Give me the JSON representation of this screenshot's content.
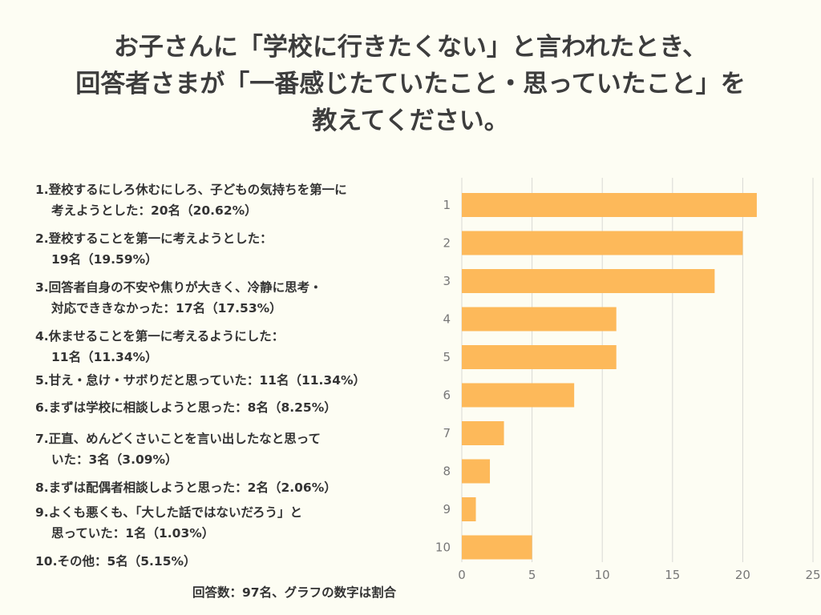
{
  "title": {
    "line1": "お子さんに「学校に行きたくない」と言われたとき、",
    "line2": "回答者さまが「一番感じたていたこと・思っていたこと」を",
    "line3": "教えてください。"
  },
  "legend": [
    {
      "line1": "1.登校するにしろ休むにしろ、子どもの気持ちを第一に",
      "line2": "考えようとした：20名（20.62%）"
    },
    {
      "line1": "2.登校することを第一に考えようとした：",
      "line2": " 19名（19.59%）"
    },
    {
      "line1": "3.回答者自身の不安や焦りが大きく、冷静に思考・",
      "line2": "対応でききなかった：17名（17.53%）"
    },
    {
      "line1": "4.休ませることを第一に考えるようにした：",
      "line2": " 11名（11.34%）"
    },
    {
      "line1": "5.甘え・怠け・サボりだと思っていた：11名（11.34%）",
      "line2": ""
    },
    {
      "line1": "6.まずは学校に相談しようと思った：8名（8.25%）",
      "line2": ""
    },
    {
      "line1": "7.正直、めんどくさいことを言い出したなと思って",
      "line2": "いた：3名（3.09%）"
    },
    {
      "line1": "8.まずは配偶者相談しようと思った：2名（2.06%）",
      "line2": ""
    },
    {
      "line1": "9.よくも悪くも、「大した話ではないだろう」と",
      "line2": " 思っていた：1名（1.03%）"
    },
    {
      "line1": "10.その他：5名（5.15%）",
      "line2": ""
    }
  ],
  "footer": "回答数：97名、グラフの数字は割合",
  "colors": {
    "bar": "#fdb95a",
    "grid": "#d9d9d4",
    "axis_text": "#777777"
  },
  "chart_data": {
    "type": "bar",
    "orientation": "horizontal",
    "categories": [
      "1",
      "2",
      "3",
      "4",
      "5",
      "6",
      "7",
      "8",
      "9",
      "10"
    ],
    "values": [
      21,
      20,
      18,
      11,
      11,
      8,
      3,
      2,
      1,
      5
    ],
    "xticks": [
      0,
      5,
      10,
      15,
      20,
      25
    ],
    "xlim": [
      0,
      25
    ],
    "title": "",
    "xlabel": "",
    "ylabel": ""
  }
}
